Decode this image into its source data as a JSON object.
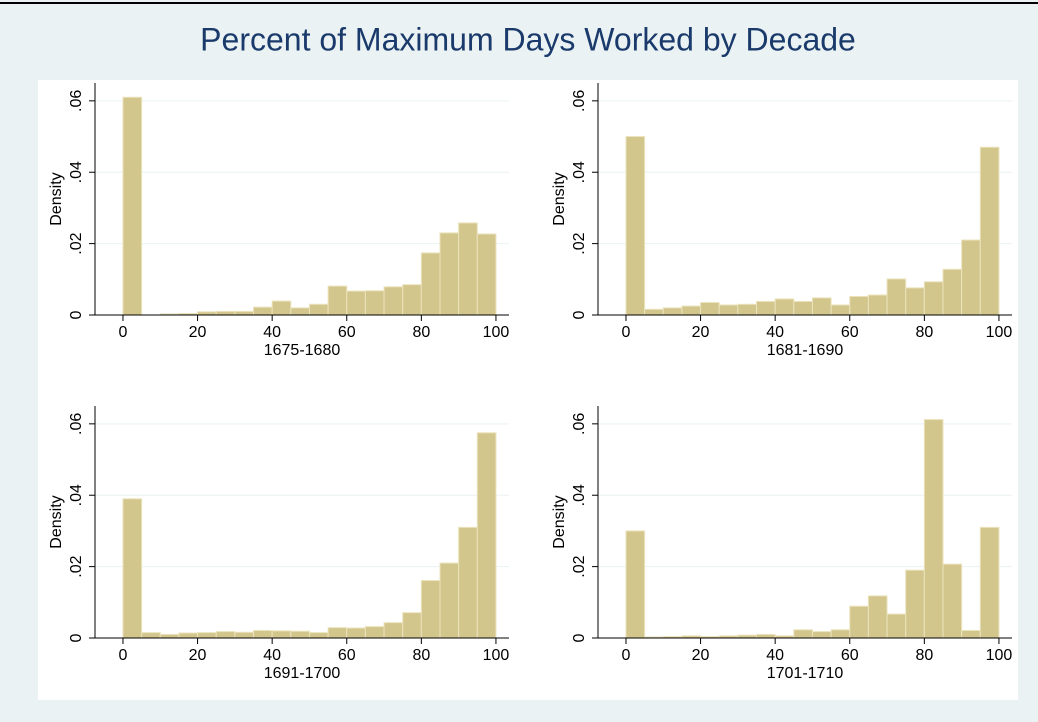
{
  "title": "Percent of Maximum Days Worked by Decade",
  "chart_data": [
    {
      "type": "histogram",
      "xlabel": "1675-1680",
      "ylabel": "Density",
      "color": "#d3c68c",
      "bins": [
        0,
        5,
        10,
        15,
        20,
        25,
        30,
        35,
        40,
        45,
        50,
        55,
        60,
        65,
        70,
        75,
        80,
        85,
        90,
        95,
        100
      ],
      "values": [
        0.061,
        0,
        0.0003,
        0.0004,
        0.0009,
        0.001,
        0.001,
        0.0022,
        0.0039,
        0.002,
        0.003,
        0.0081,
        0.0067,
        0.0068,
        0.0079,
        0.0085,
        0.0174,
        0.023,
        0.0258,
        0.0227
      ],
      "xlim": [
        -7.5,
        103.5
      ],
      "xticks": [
        0,
        20,
        40,
        60,
        80,
        100
      ],
      "ylim": [
        0,
        0.065
      ],
      "yticks": [
        0,
        {
          "value": 0.02,
          "label": ".02"
        },
        {
          "value": 0.04,
          "label": ".04"
        },
        {
          "value": 0.06,
          "label": ".06"
        }
      ],
      "grid": true
    },
    {
      "type": "histogram",
      "xlabel": "1681-1690",
      "ylabel": "Density",
      "color": "#d3c68c",
      "bins": [
        0,
        5,
        10,
        15,
        20,
        25,
        30,
        35,
        40,
        45,
        50,
        55,
        60,
        65,
        70,
        75,
        80,
        85,
        90,
        95,
        100
      ],
      "values": [
        0.05,
        0.0016,
        0.002,
        0.0025,
        0.0035,
        0.0028,
        0.003,
        0.0038,
        0.0045,
        0.0038,
        0.0048,
        0.0028,
        0.0052,
        0.0056,
        0.0101,
        0.0076,
        0.0093,
        0.0128,
        0.021,
        0.047
      ],
      "xlim": [
        -7.5,
        103.5
      ],
      "xticks": [
        0,
        20,
        40,
        60,
        80,
        100
      ],
      "ylim": [
        0,
        0.065
      ],
      "yticks": [
        0,
        {
          "value": 0.02,
          "label": ".02"
        },
        {
          "value": 0.04,
          "label": ".04"
        },
        {
          "value": 0.06,
          "label": ".06"
        }
      ],
      "grid": true
    },
    {
      "type": "histogram",
      "xlabel": "1691-1700",
      "ylabel": "Density",
      "color": "#d3c68c",
      "bins": [
        0,
        5,
        10,
        15,
        20,
        25,
        30,
        35,
        40,
        45,
        50,
        55,
        60,
        65,
        70,
        75,
        80,
        85,
        90,
        95,
        100
      ],
      "values": [
        0.039,
        0.0015,
        0.001,
        0.0014,
        0.0015,
        0.0018,
        0.0016,
        0.0021,
        0.002,
        0.0019,
        0.0015,
        0.0029,
        0.0028,
        0.0032,
        0.0043,
        0.0071,
        0.0161,
        0.021,
        0.031,
        0.0575
      ],
      "xlim": [
        -7.5,
        103.5
      ],
      "xticks": [
        0,
        20,
        40,
        60,
        80,
        100
      ],
      "ylim": [
        0,
        0.065
      ],
      "yticks": [
        0,
        {
          "value": 0.02,
          "label": ".02"
        },
        {
          "value": 0.04,
          "label": ".04"
        },
        {
          "value": 0.06,
          "label": ".06"
        }
      ],
      "grid": true
    },
    {
      "type": "histogram",
      "xlabel": "1701-1710",
      "ylabel": "Density",
      "color": "#d3c68c",
      "bins": [
        0,
        5,
        10,
        15,
        20,
        25,
        30,
        35,
        40,
        45,
        50,
        55,
        60,
        65,
        70,
        75,
        80,
        85,
        90,
        95,
        100
      ],
      "values": [
        0.03,
        0.0003,
        0.0004,
        0.0006,
        0.0004,
        0.0006,
        0.0008,
        0.001,
        0.0006,
        0.0023,
        0.0018,
        0.0023,
        0.0089,
        0.0118,
        0.0067,
        0.019,
        0.0612,
        0.0207,
        0.0021,
        0.031
      ],
      "xlim": [
        -7.5,
        103.5
      ],
      "xticks": [
        0,
        20,
        40,
        60,
        80,
        100
      ],
      "ylim": [
        0,
        0.065
      ],
      "yticks": [
        0,
        {
          "value": 0.02,
          "label": ".02"
        },
        {
          "value": 0.04,
          "label": ".04"
        },
        {
          "value": 0.06,
          "label": ".06"
        }
      ],
      "grid": true
    }
  ]
}
